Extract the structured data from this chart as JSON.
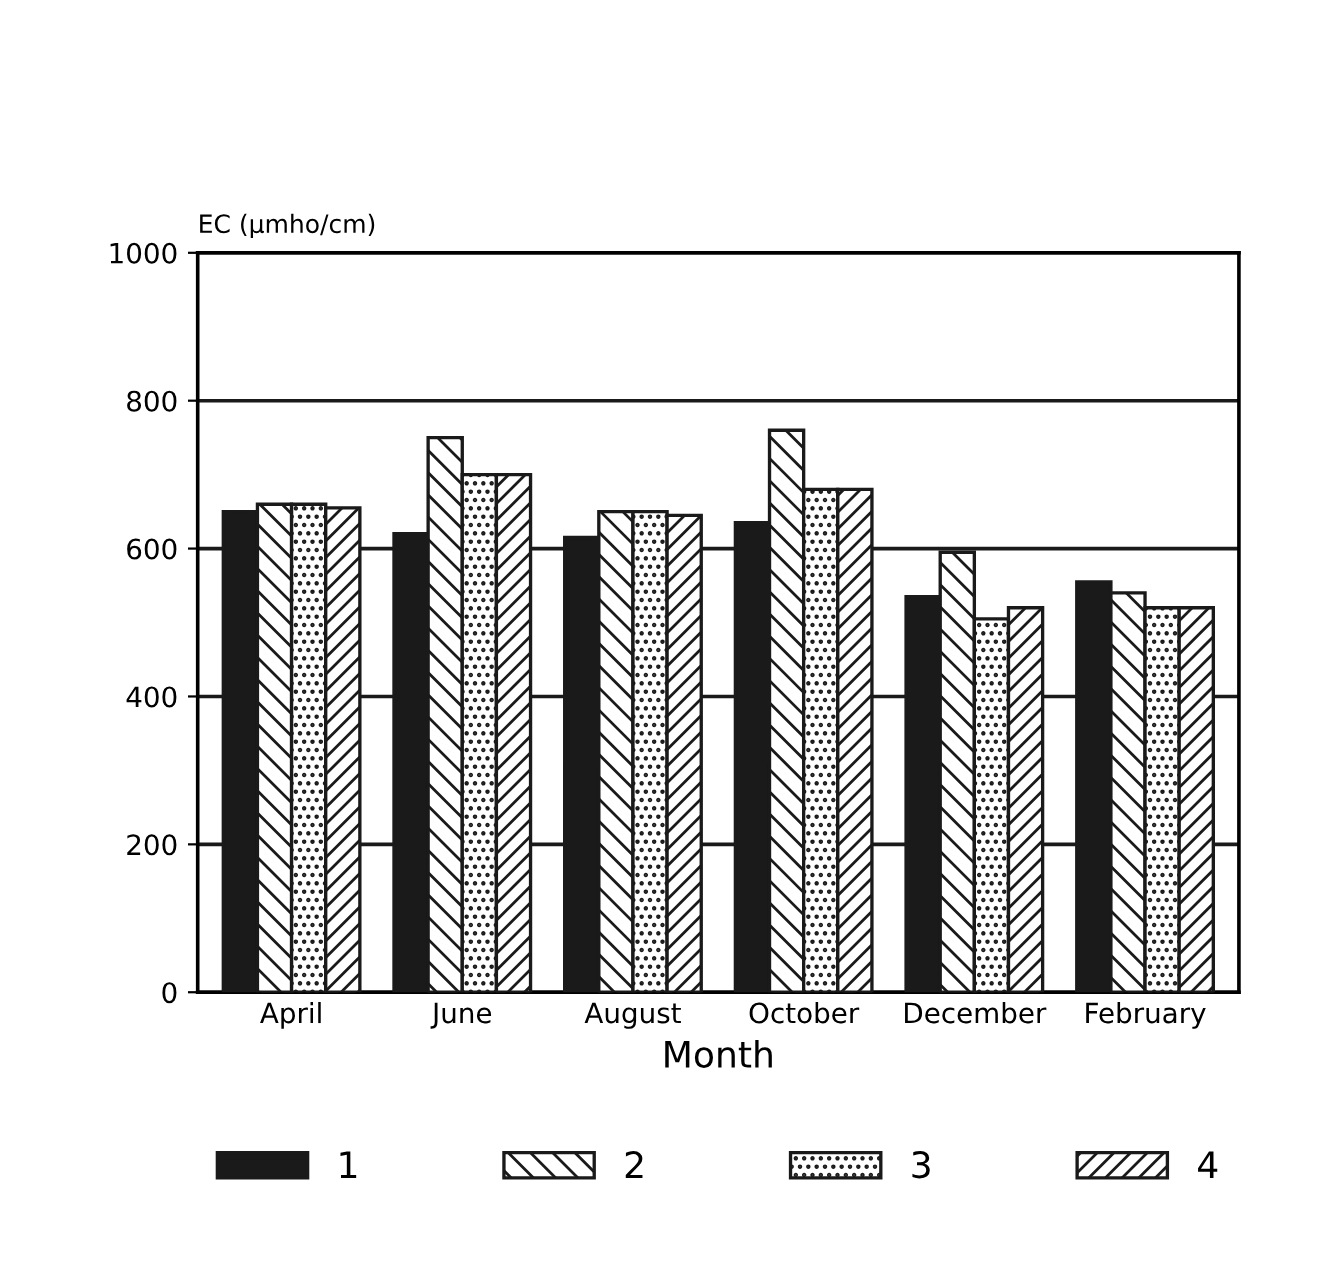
{
  "chart_data": {
    "type": "bar",
    "ylabel": "EC (µmho/cm)",
    "xlabel": "Month",
    "categories": [
      "April",
      "June",
      "August",
      "October",
      "December",
      "February"
    ],
    "series": [
      {
        "name": "1",
        "color": "#1a1a1a",
        "values": [
          650,
          620,
          615,
          635,
          535,
          555
        ]
      },
      {
        "name": "2",
        "color": "#1a1a1a",
        "values": [
          660,
          750,
          650,
          760,
          595,
          540
        ]
      },
      {
        "name": "3",
        "color": "#1a1a1a",
        "values": [
          660,
          700,
          650,
          680,
          505,
          520
        ]
      },
      {
        "name": "4",
        "color": "#1a1a1a",
        "values": [
          655,
          700,
          645,
          680,
          520,
          520
        ]
      }
    ],
    "ylim": [
      0,
      1000
    ],
    "yticks": [
      0,
      200,
      400,
      600,
      800,
      1000
    ],
    "grid": "y",
    "legend": "bottom"
  }
}
